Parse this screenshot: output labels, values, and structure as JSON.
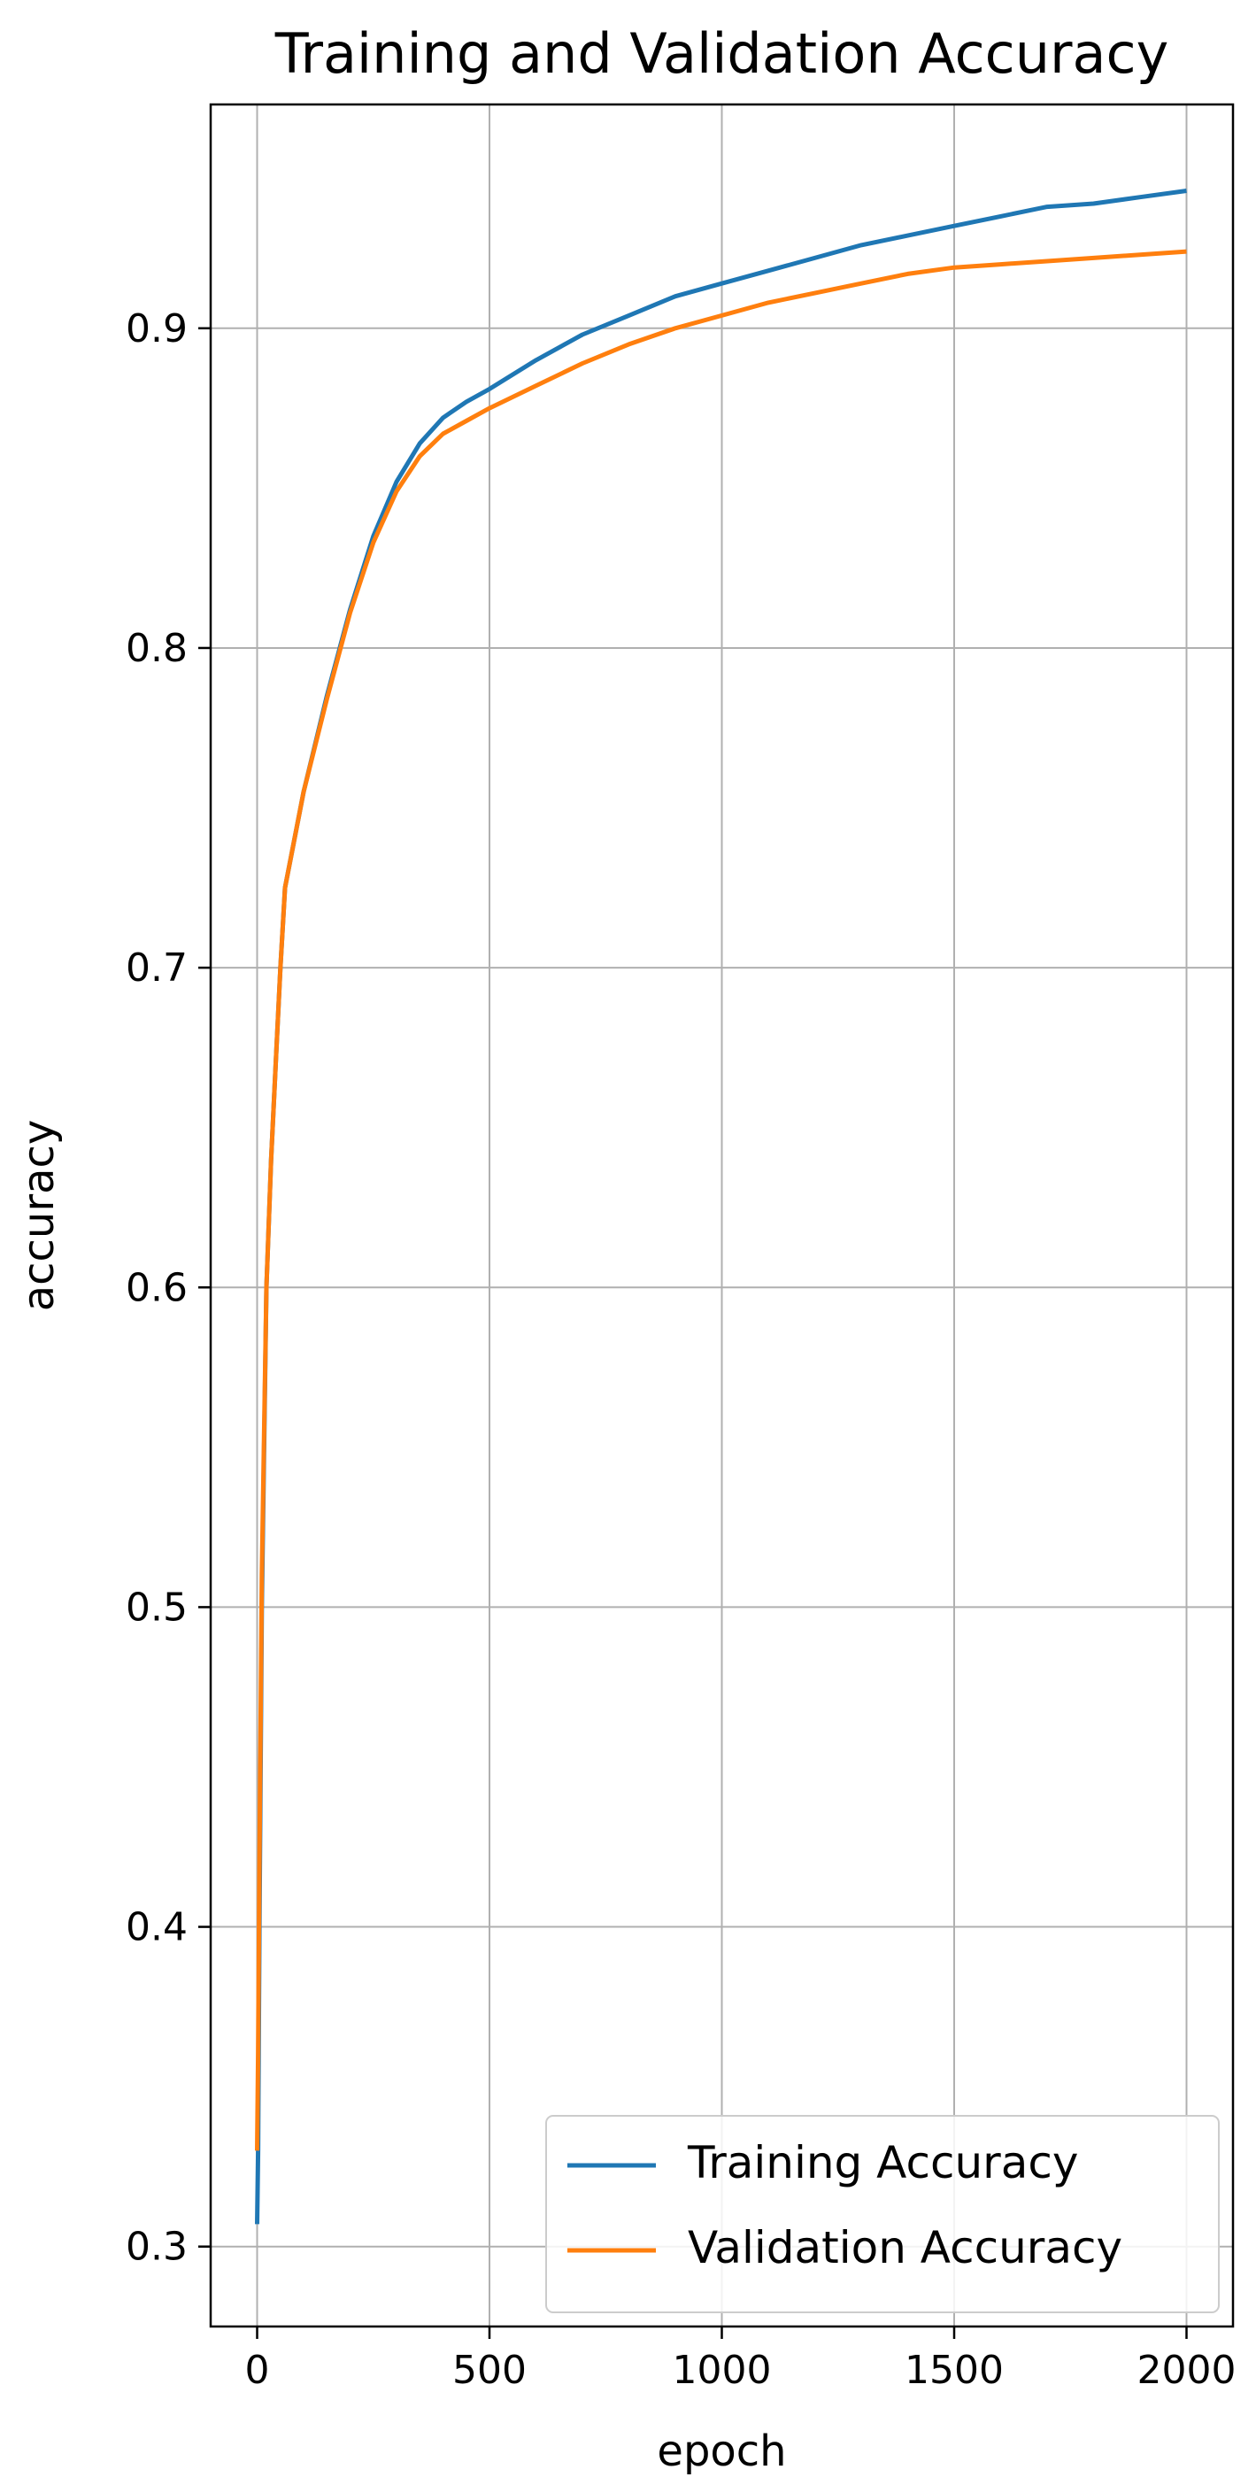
{
  "chart_data": {
    "type": "line",
    "title": "Training and Validation Accuracy",
    "xlabel": "epoch",
    "ylabel": "accuracy",
    "xlim": [
      -100,
      2100
    ],
    "ylim": [
      0.275,
      0.97
    ],
    "grid": true,
    "legend_position": "bottom-right",
    "xticks": [
      0,
      500,
      1000,
      1500,
      2000
    ],
    "xtick_labels": [
      "0",
      "500",
      "1000",
      "1500",
      "2000"
    ],
    "yticks": [
      0.3,
      0.4,
      0.5,
      0.6,
      0.7,
      0.8,
      0.9
    ],
    "ytick_labels": [
      "0.3",
      "0.4",
      "0.5",
      "0.6",
      "0.7",
      "0.8",
      "0.9"
    ],
    "series": [
      {
        "name": "Training Accuracy",
        "color": "#1f77b4",
        "x": [
          0,
          2,
          5,
          10,
          20,
          30,
          40,
          50,
          60,
          100,
          150,
          200,
          250,
          300,
          350,
          400,
          450,
          500,
          600,
          700,
          800,
          900,
          1000,
          1100,
          1200,
          1300,
          1400,
          1500,
          1600,
          1700,
          1800,
          1900,
          2000
        ],
        "y": [
          0.307,
          0.33,
          0.4,
          0.5,
          0.6,
          0.64,
          0.67,
          0.7,
          0.725,
          0.755,
          0.785,
          0.812,
          0.835,
          0.852,
          0.864,
          0.872,
          0.877,
          0.881,
          0.89,
          0.898,
          0.904,
          0.91,
          0.914,
          0.918,
          0.922,
          0.926,
          0.929,
          0.932,
          0.935,
          0.938,
          0.939,
          0.941,
          0.943
        ]
      },
      {
        "name": "Validation Accuracy",
        "color": "#ff7f0e",
        "x": [
          0,
          2,
          5,
          10,
          20,
          30,
          40,
          50,
          60,
          100,
          150,
          200,
          250,
          300,
          350,
          400,
          450,
          500,
          600,
          700,
          800,
          900,
          1000,
          1100,
          1200,
          1300,
          1400,
          1500,
          1600,
          1700,
          1800,
          1900,
          2000
        ],
        "y": [
          0.33,
          0.36,
          0.42,
          0.51,
          0.6,
          0.64,
          0.67,
          0.7,
          0.725,
          0.755,
          0.784,
          0.811,
          0.833,
          0.849,
          0.86,
          0.867,
          0.871,
          0.875,
          0.882,
          0.889,
          0.895,
          0.9,
          0.904,
          0.908,
          0.911,
          0.914,
          0.917,
          0.919,
          0.92,
          0.921,
          0.922,
          0.923,
          0.924
        ]
      }
    ]
  }
}
